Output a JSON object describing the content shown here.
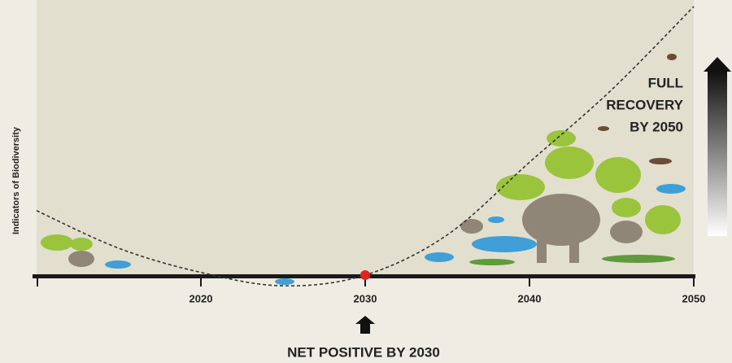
{
  "chart_data": {
    "type": "line",
    "y_label": "Indicators of Biodiversity",
    "x": [
      2010,
      2015,
      2020,
      2025,
      2030,
      2035,
      2040,
      2045,
      2050
    ],
    "series": [
      {
        "color": "#333333",
        "values": [
          2.4,
          1.0,
          0.1,
          -0.4,
          0,
          1.5,
          4.2,
          6.9,
          10
        ]
      }
    ],
    "highlight": {
      "x": 2030,
      "value": 0,
      "color": "#e32222"
    },
    "xlim": [
      2010,
      2050
    ],
    "xticks": [
      2020,
      2030,
      2040,
      2050
    ],
    "ylim": [
      0,
      10
    ],
    "annotation_top": [
      "FULL",
      "RECOVERY",
      "BY 2050"
    ],
    "annotation_bottom": "NET POSITIVE BY 2030"
  }
}
